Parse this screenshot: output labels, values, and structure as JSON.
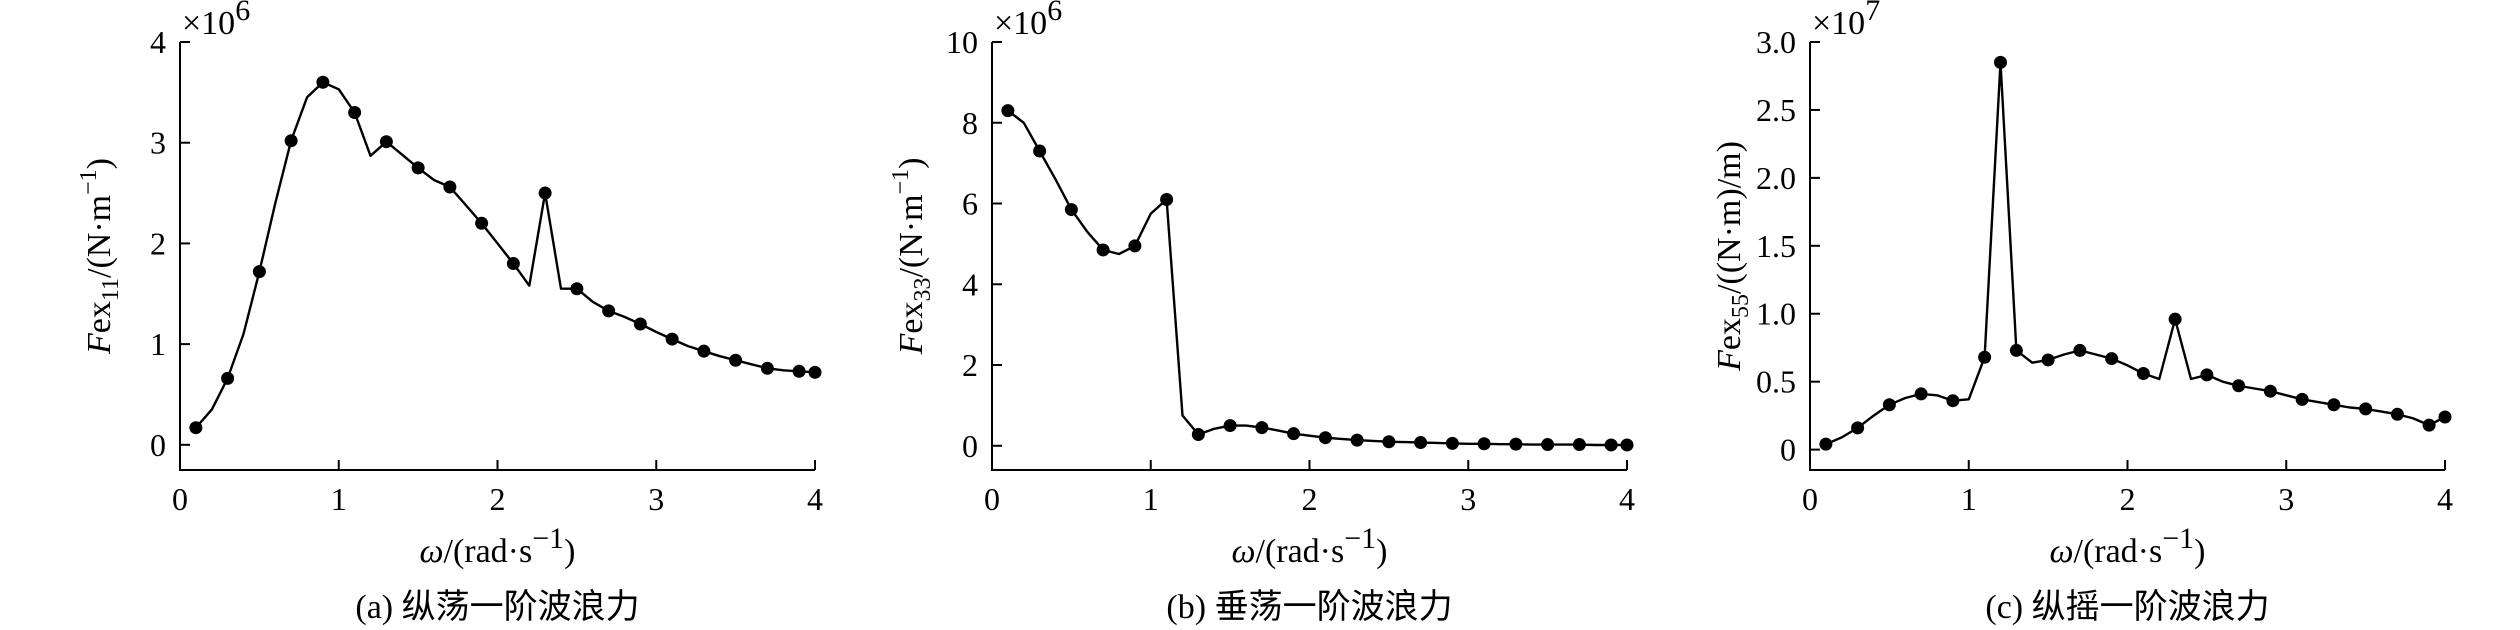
{
  "chart_data": [
    {
      "type": "line",
      "caption": "(a) 纵荡一阶波浪力",
      "xlabel_sym": "ω",
      "xlabel_unit": "/(rad·s",
      "xlabel_sup": "−1",
      "xlabel_end": ")",
      "ylabel_sym": "F",
      "ylabel_ex": "ex",
      "ylabel_sub": "11",
      "ylabel_unit": "/(N·m",
      "ylabel_sup": "−1",
      "ylabel_end": ")",
      "multiplier_base": "×10",
      "multiplier_exp": "6",
      "xlim": [
        0,
        4
      ],
      "ylim": [
        -0.25,
        4
      ],
      "xticks": [
        0,
        1,
        2,
        3,
        4
      ],
      "yticks": [
        0,
        1,
        2,
        3,
        4
      ],
      "line": [
        [
          0.1,
          0.17
        ],
        [
          0.2,
          0.35
        ],
        [
          0.3,
          0.66
        ],
        [
          0.4,
          1.1
        ],
        [
          0.5,
          1.72
        ],
        [
          0.6,
          2.4
        ],
        [
          0.7,
          3.02
        ],
        [
          0.8,
          3.45
        ],
        [
          0.9,
          3.6
        ],
        [
          1.0,
          3.53
        ],
        [
          1.1,
          3.3
        ],
        [
          1.2,
          2.87
        ],
        [
          1.3,
          3.01
        ],
        [
          1.4,
          2.88
        ],
        [
          1.5,
          2.75
        ],
        [
          1.6,
          2.63
        ],
        [
          1.7,
          2.56
        ],
        [
          1.8,
          2.38
        ],
        [
          1.9,
          2.2
        ],
        [
          2.0,
          2.0
        ],
        [
          2.1,
          1.8
        ],
        [
          2.2,
          1.58
        ],
        [
          2.3,
          2.5
        ],
        [
          2.4,
          1.55
        ],
        [
          2.5,
          1.55
        ],
        [
          2.6,
          1.42
        ],
        [
          2.7,
          1.33
        ],
        [
          2.8,
          1.27
        ],
        [
          2.9,
          1.2
        ],
        [
          3.0,
          1.12
        ],
        [
          3.1,
          1.05
        ],
        [
          3.2,
          0.98
        ],
        [
          3.3,
          0.93
        ],
        [
          3.4,
          0.88
        ],
        [
          3.5,
          0.84
        ],
        [
          3.6,
          0.8
        ],
        [
          3.7,
          0.76
        ],
        [
          3.8,
          0.74
        ],
        [
          3.9,
          0.73
        ],
        [
          4.0,
          0.72
        ]
      ],
      "markers": [
        [
          0.1,
          0.17
        ],
        [
          0.3,
          0.66
        ],
        [
          0.5,
          1.72
        ],
        [
          0.7,
          3.02
        ],
        [
          0.9,
          3.6
        ],
        [
          1.1,
          3.3
        ],
        [
          1.3,
          3.01
        ],
        [
          1.5,
          2.75
        ],
        [
          1.7,
          2.56
        ],
        [
          1.9,
          2.2
        ],
        [
          2.1,
          1.8
        ],
        [
          2.3,
          2.5
        ],
        [
          2.5,
          1.55
        ],
        [
          2.7,
          1.33
        ],
        [
          2.9,
          1.2
        ],
        [
          3.1,
          1.05
        ],
        [
          3.3,
          0.93
        ],
        [
          3.5,
          0.84
        ],
        [
          3.7,
          0.76
        ],
        [
          3.9,
          0.73
        ],
        [
          4.0,
          0.72
        ]
      ]
    },
    {
      "type": "line",
      "caption": "(b) 垂荡一阶波浪力",
      "xlabel_sym": "ω",
      "xlabel_unit": "/(rad·s",
      "xlabel_sup": "−1",
      "xlabel_end": ")",
      "ylabel_sym": "F",
      "ylabel_ex": "ex",
      "ylabel_sub": "33",
      "ylabel_unit": "/(N·m",
      "ylabel_sup": "−1",
      "ylabel_end": ")",
      "multiplier_base": "×10",
      "multiplier_exp": "6",
      "xlim": [
        0,
        4
      ],
      "ylim": [
        -0.6,
        10
      ],
      "xticks": [
        0,
        1,
        2,
        3,
        4
      ],
      "yticks": [
        0,
        2,
        4,
        6,
        8,
        10
      ],
      "line": [
        [
          0.1,
          8.3
        ],
        [
          0.2,
          8.0
        ],
        [
          0.3,
          7.3
        ],
        [
          0.4,
          6.6
        ],
        [
          0.5,
          5.85
        ],
        [
          0.6,
          5.3
        ],
        [
          0.7,
          4.85
        ],
        [
          0.8,
          4.75
        ],
        [
          0.9,
          4.95
        ],
        [
          1.0,
          5.75
        ],
        [
          1.1,
          6.1
        ],
        [
          1.2,
          0.75
        ],
        [
          1.3,
          0.28
        ],
        [
          1.4,
          0.42
        ],
        [
          1.5,
          0.5
        ],
        [
          1.6,
          0.5
        ],
        [
          1.7,
          0.45
        ],
        [
          1.8,
          0.38
        ],
        [
          1.9,
          0.3
        ],
        [
          2.0,
          0.25
        ],
        [
          2.1,
          0.2
        ],
        [
          2.2,
          0.17
        ],
        [
          2.3,
          0.14
        ],
        [
          2.4,
          0.12
        ],
        [
          2.5,
          0.1
        ],
        [
          2.6,
          0.09
        ],
        [
          2.7,
          0.08
        ],
        [
          2.8,
          0.07
        ],
        [
          2.9,
          0.06
        ],
        [
          3.0,
          0.05
        ],
        [
          3.1,
          0.05
        ],
        [
          3.2,
          0.04
        ],
        [
          3.3,
          0.04
        ],
        [
          3.4,
          0.03
        ],
        [
          3.5,
          0.03
        ],
        [
          3.6,
          0.03
        ],
        [
          3.7,
          0.03
        ],
        [
          3.8,
          0.02
        ],
        [
          3.9,
          0.02
        ],
        [
          4.0,
          0.02
        ]
      ],
      "markers": [
        [
          0.1,
          8.3
        ],
        [
          0.3,
          7.3
        ],
        [
          0.5,
          5.85
        ],
        [
          0.7,
          4.85
        ],
        [
          0.9,
          4.95
        ],
        [
          1.1,
          6.1
        ],
        [
          1.3,
          0.28
        ],
        [
          1.5,
          0.5
        ],
        [
          1.7,
          0.45
        ],
        [
          1.9,
          0.3
        ],
        [
          2.1,
          0.2
        ],
        [
          2.3,
          0.14
        ],
        [
          2.5,
          0.1
        ],
        [
          2.7,
          0.08
        ],
        [
          2.9,
          0.06
        ],
        [
          3.1,
          0.05
        ],
        [
          3.3,
          0.04
        ],
        [
          3.5,
          0.03
        ],
        [
          3.7,
          0.03
        ],
        [
          3.9,
          0.02
        ],
        [
          4.0,
          0.02
        ]
      ]
    },
    {
      "type": "line",
      "caption": "(c) 纵摇一阶波浪力",
      "xlabel_sym": "ω",
      "xlabel_unit": "/(rad·s",
      "xlabel_sup": "−1",
      "xlabel_end": ")",
      "ylabel_sym": "F",
      "ylabel_ex": "ex",
      "ylabel_sub": "55",
      "ylabel_unit": "/((N·m)/m)",
      "ylabel_sup": "",
      "ylabel_end": "",
      "multiplier_base": "×10",
      "multiplier_exp": "7",
      "xlim": [
        0,
        4
      ],
      "ylim": [
        -0.15,
        3.0
      ],
      "xticks": [
        0,
        1,
        2,
        3,
        4
      ],
      "yticks": [
        0,
        0.5,
        1.0,
        1.5,
        2.0,
        2.5,
        3.0
      ],
      "ytick_labels": [
        "0",
        "0.5",
        "1.0",
        "1.5",
        "2.0",
        "2.5",
        "3.0"
      ],
      "line": [
        [
          0.1,
          0.04
        ],
        [
          0.2,
          0.09
        ],
        [
          0.3,
          0.16
        ],
        [
          0.4,
          0.25
        ],
        [
          0.5,
          0.33
        ],
        [
          0.6,
          0.38
        ],
        [
          0.7,
          0.41
        ],
        [
          0.8,
          0.4
        ],
        [
          0.9,
          0.36
        ],
        [
          1.0,
          0.37
        ],
        [
          1.1,
          0.68
        ],
        [
          1.2,
          2.85
        ],
        [
          1.3,
          0.73
        ],
        [
          1.4,
          0.64
        ],
        [
          1.5,
          0.66
        ],
        [
          1.6,
          0.7
        ],
        [
          1.7,
          0.73
        ],
        [
          1.8,
          0.7
        ],
        [
          1.9,
          0.67
        ],
        [
          2.0,
          0.62
        ],
        [
          2.1,
          0.56
        ],
        [
          2.2,
          0.52
        ],
        [
          2.3,
          0.96
        ],
        [
          2.4,
          0.52
        ],
        [
          2.5,
          0.55
        ],
        [
          2.6,
          0.5
        ],
        [
          2.7,
          0.47
        ],
        [
          2.8,
          0.45
        ],
        [
          2.9,
          0.43
        ],
        [
          3.0,
          0.4
        ],
        [
          3.1,
          0.37
        ],
        [
          3.2,
          0.35
        ],
        [
          3.3,
          0.33
        ],
        [
          3.4,
          0.31
        ],
        [
          3.5,
          0.3
        ],
        [
          3.6,
          0.28
        ],
        [
          3.7,
          0.26
        ],
        [
          3.8,
          0.23
        ],
        [
          3.9,
          0.18
        ],
        [
          4.0,
          0.24
        ]
      ],
      "markers": [
        [
          0.1,
          0.04
        ],
        [
          0.3,
          0.16
        ],
        [
          0.5,
          0.33
        ],
        [
          0.7,
          0.41
        ],
        [
          0.9,
          0.36
        ],
        [
          1.1,
          0.68
        ],
        [
          1.2,
          2.85
        ],
        [
          1.3,
          0.73
        ],
        [
          1.5,
          0.66
        ],
        [
          1.7,
          0.73
        ],
        [
          1.9,
          0.67
        ],
        [
          2.1,
          0.56
        ],
        [
          2.3,
          0.96
        ],
        [
          2.5,
          0.55
        ],
        [
          2.7,
          0.47
        ],
        [
          2.9,
          0.43
        ],
        [
          3.1,
          0.37
        ],
        [
          3.3,
          0.33
        ],
        [
          3.5,
          0.3
        ],
        [
          3.7,
          0.26
        ],
        [
          3.9,
          0.18
        ],
        [
          4.0,
          0.24
        ]
      ]
    }
  ]
}
